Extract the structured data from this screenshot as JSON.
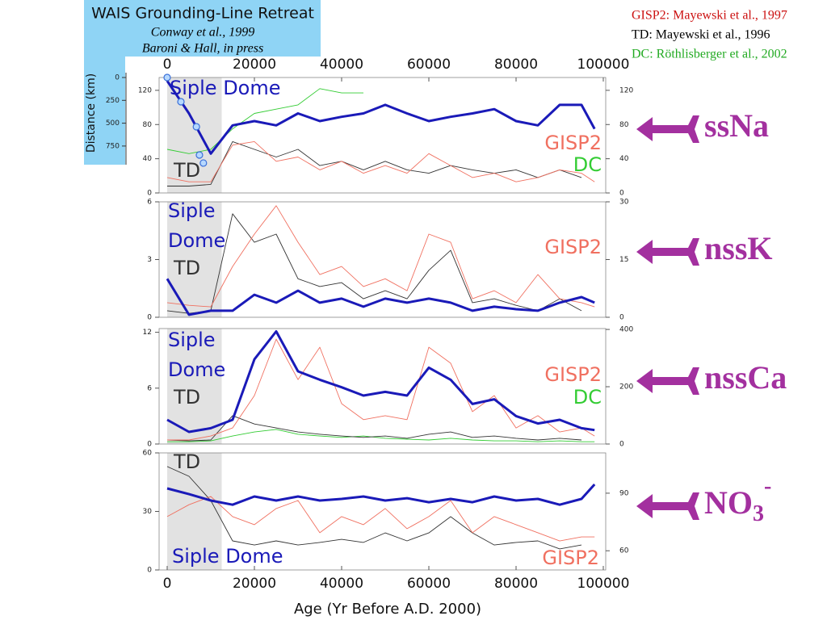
{
  "sources": [
    {
      "text": "GISP2: Mayewski et al., 1997",
      "color": "#cc1111"
    },
    {
      "text": "TD: Mayewski et al., 1996",
      "color": "#000000"
    },
    {
      "text": "DC: Röthlisberger et al., 2002",
      "color": "#22aa22"
    }
  ],
  "chart_data": [
    {
      "type": "scatter",
      "title": "WAIS Grounding-Line Retreat",
      "subtitle": [
        "Conway et al., 1999",
        "Baroni & Hall, in press"
      ],
      "ylabel": "Distance (km)",
      "color": "#3a6fd8",
      "x": [
        0,
        3150,
        6700,
        7400,
        8300
      ],
      "values": [
        0,
        265,
        539,
        848,
        936
      ],
      "xlim": [
        0,
        100000
      ],
      "ylim": [
        963,
        0
      ],
      "yticks": [
        0,
        250,
        500,
        750
      ]
    },
    {
      "type": "line",
      "annotation": {
        "text": "ssNa"
      },
      "x": [
        0,
        5000,
        10000,
        15000,
        20000,
        25000,
        30000,
        35000,
        40000,
        45000,
        50000,
        55000,
        60000,
        65000,
        70000,
        75000,
        80000,
        85000,
        90000,
        95000,
        98000
      ],
      "xlim": [
        0,
        100000
      ],
      "xticks": [
        0,
        20000,
        40000,
        60000,
        80000,
        100000
      ],
      "shaded_range": [
        0,
        12500
      ],
      "ylim": [
        0,
        135
      ],
      "yticks": [
        0,
        40,
        80,
        120
      ],
      "y2lim": [
        0,
        135
      ],
      "y2ticks": [
        0,
        40,
        80,
        120
      ],
      "series": [
        {
          "name": "Siple Dome",
          "color": "#1a1ab8",
          "values": [
            131,
            93,
            46,
            79,
            84,
            79,
            93,
            84,
            89,
            93,
            103,
            93,
            84,
            89,
            93,
            98,
            84,
            79,
            103,
            103,
            75
          ]
        },
        {
          "name": "GISP2",
          "color": "#f07060",
          "axis": "y2",
          "values": [
            18,
            13,
            13,
            56,
            60,
            37,
            42,
            27,
            37,
            23,
            32,
            23,
            46,
            32,
            18,
            23,
            13,
            18,
            27,
            23,
            13
          ]
        },
        {
          "name": "TD",
          "color": "#333333",
          "values": [
            8,
            8,
            10,
            60,
            51,
            42,
            51,
            32,
            37,
            27,
            37,
            27,
            23,
            32,
            27,
            23,
            27,
            18,
            27,
            18,
            null
          ]
        },
        {
          "name": "DC",
          "color": "#33cc33",
          "axis": "y2",
          "values": [
            51,
            46,
            51,
            75,
            93,
            98,
            103,
            122,
            117,
            117,
            null,
            null,
            null,
            null,
            null,
            null,
            null,
            null,
            null,
            null,
            null
          ]
        }
      ]
    },
    {
      "type": "line",
      "annotation": {
        "text": "nssK"
      },
      "x": [
        0,
        5000,
        10000,
        15000,
        20000,
        25000,
        30000,
        35000,
        40000,
        45000,
        50000,
        55000,
        60000,
        65000,
        70000,
        75000,
        80000,
        85000,
        90000,
        95000,
        98000
      ],
      "xlim": [
        0,
        100000
      ],
      "shaded_range": [
        0,
        12500
      ],
      "ylim": [
        0,
        6
      ],
      "yticks": [
        0,
        3,
        6
      ],
      "y2lim": [
        0,
        30
      ],
      "y2ticks": [
        0,
        15,
        30
      ],
      "series": [
        {
          "label_lines": [
            "Siple",
            "Dome"
          ],
          "color": "#1a1ab8",
          "values": [
            2.0,
            0.13,
            0.34,
            0.34,
            1.17,
            0.76,
            1.38,
            0.76,
            0.97,
            0.55,
            0.97,
            0.76,
            0.97,
            0.76,
            0.34,
            0.55,
            0.42,
            0.34,
            0.76,
            1.05,
            0.76
          ]
        },
        {
          "name": "GISP2",
          "color": "#f07060",
          "axis": "y2",
          "values": [
            3.8,
            3.1,
            2.7,
            13.2,
            21.6,
            29,
            19.5,
            11.1,
            13.2,
            8,
            10,
            6.9,
            21.6,
            19.5,
            4.8,
            6.9,
            3.8,
            11.1,
            4.8,
            3.8,
            2.7
          ]
        },
        {
          "name": "TD",
          "color": "#333333",
          "axis": "y2",
          "values": [
            1.7,
            1,
            1.7,
            26.9,
            19.5,
            21.6,
            10,
            8,
            9,
            4.8,
            6.9,
            4.8,
            12.2,
            17.4,
            3.8,
            4.8,
            3.1,
            1.7,
            4.8,
            1.7,
            null
          ]
        }
      ]
    },
    {
      "type": "line",
      "annotation": {
        "text": "nssCa"
      },
      "x": [
        0,
        5000,
        10000,
        15000,
        20000,
        25000,
        30000,
        35000,
        40000,
        45000,
        50000,
        55000,
        60000,
        65000,
        70000,
        75000,
        80000,
        85000,
        90000,
        95000,
        98000
      ],
      "xlim": [
        0,
        100000
      ],
      "shaded_range": [
        0,
        12500
      ],
      "ylim": [
        0,
        12.4
      ],
      "yticks": [
        0,
        6,
        12
      ],
      "y2lim": [
        0,
        403
      ],
      "y2ticks": [
        0,
        200,
        400
      ],
      "series": [
        {
          "label_lines": [
            "Siple",
            "Dome"
          ],
          "color": "#1a1ab8",
          "values": [
            2.6,
            1.3,
            1.7,
            2.6,
            9.1,
            12.1,
            7.8,
            6.9,
            6.1,
            5.2,
            5.6,
            5.2,
            8.2,
            6.9,
            4.3,
            4.8,
            3.0,
            2.2,
            2.6,
            1.7,
            1.5
          ]
        },
        {
          "name": "GISP2",
          "color": "#f07060",
          "axis": "y2",
          "values": [
            14,
            14,
            28,
            56,
            169,
            366,
            225,
            338,
            141,
            85,
            99,
            85,
            338,
            282,
            113,
            169,
            56,
            99,
            42,
            56,
            28
          ]
        },
        {
          "name": "TD",
          "color": "#333333",
          "axis": "y2",
          "values": [
            14,
            11,
            14,
            99,
            70,
            56,
            42,
            34,
            28,
            23,
            28,
            20,
            34,
            42,
            23,
            28,
            20,
            14,
            20,
            14,
            null
          ]
        },
        {
          "name": "DC",
          "color": "#33cc33",
          "axis": "y2",
          "values": [
            8,
            8,
            11,
            28,
            42,
            51,
            34,
            28,
            23,
            28,
            20,
            17,
            14,
            20,
            14,
            11,
            11,
            8,
            11,
            8,
            8
          ]
        }
      ]
    },
    {
      "type": "line",
      "annotation": {
        "text": "NO",
        "sub": "3",
        "sup": "-"
      },
      "x": [
        0,
        5000,
        10000,
        15000,
        20000,
        25000,
        30000,
        35000,
        40000,
        45000,
        50000,
        55000,
        60000,
        65000,
        70000,
        75000,
        80000,
        85000,
        90000,
        95000,
        98000
      ],
      "xlim": [
        0,
        100000
      ],
      "xticks": [
        0,
        20000,
        40000,
        60000,
        80000,
        100000
      ],
      "xlabel": "Age (Yr Before A.D. 2000)",
      "shaded_range": [
        0,
        12500
      ],
      "ylim": [
        0,
        60
      ],
      "yticks": [
        0,
        30,
        60
      ],
      "y2lim": [
        50,
        111
      ],
      "y2ticks": [
        60,
        90
      ],
      "series": [
        {
          "name": "Siple Dome",
          "color": "#1a1ab8",
          "axis": "y2",
          "values": [
            92.5,
            89.5,
            86.2,
            84,
            88.3,
            86.2,
            88.3,
            86.2,
            87,
            88.3,
            86.2,
            87.4,
            85.3,
            87,
            85.3,
            88.3,
            86.2,
            87,
            84,
            87,
            94.6
          ]
        },
        {
          "name": "GISP2",
          "color": "#f07060",
          "axis": "y2",
          "values": [
            77.8,
            84,
            88.3,
            77.8,
            73.6,
            82,
            86.2,
            69.4,
            77.8,
            73.6,
            82,
            71.5,
            77.8,
            86.2,
            69.4,
            77.8,
            73.6,
            69.4,
            65.1,
            67.2,
            67.2
          ]
        },
        {
          "name": "TD",
          "color": "#333333",
          "values": [
            53,
            48,
            35.6,
            14.9,
            12.8,
            14.9,
            12.8,
            14.1,
            15.7,
            14.1,
            19,
            14.9,
            19,
            27.3,
            19,
            12.8,
            14.1,
            14.9,
            10.8,
            12.8,
            null
          ]
        }
      ]
    }
  ]
}
